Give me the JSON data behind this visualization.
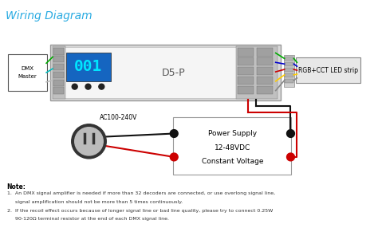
{
  "title": "Wiring Diagram",
  "title_color": "#29abe2",
  "bg_color": "#ffffff",
  "note_title": "Note:",
  "note_lines": [
    "1.  An DMX signal amplifier is needed if more than 32 decoders are connected, or use overlong signal line,",
    "     signal amplification should not be more than 5 times continuously.",
    "2.  If the recoil effect occurs because of longer signal line or bad line quality, please try to connect 0.25W",
    "     90-120Ω terminal resistor at the end of each DMX signal line."
  ],
  "dmx_box_label": [
    "DMX",
    "Master"
  ],
  "device_label": "D5-P",
  "led_label": "RGB+CCT LED strip",
  "power_label": [
    "Power Supply",
    "12-48VDC",
    "Constant Voltage"
  ],
  "ac_label": "AC100-240V",
  "display_color": "#1565c0",
  "display_text": "001",
  "display_text_color": "#00e5ff",
  "wire_colors_left": [
    "#00aa00",
    "#00bbbb",
    "#bbbbbb"
  ],
  "wire_colors_right": [
    "#00aa00",
    "#0000cc",
    "#cc0000",
    "#ffcc00",
    "#888888"
  ],
  "power_black": "#111111",
  "power_red": "#cc0000",
  "dot_black": "#111111",
  "dot_red": "#cc0000"
}
